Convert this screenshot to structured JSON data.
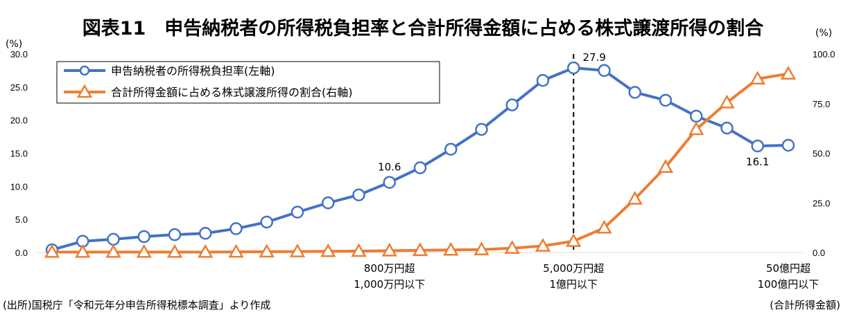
{
  "chart_data": {
    "type": "line",
    "title": "図表11　申告納税者の所得税負担率と合計所得金額に占める株式譲渡所得の割合",
    "left_axis": {
      "unit_label": "(%)",
      "ylim": [
        0,
        30
      ],
      "ticks": [
        "0.0",
        "5.0",
        "10.0",
        "15.0",
        "20.0",
        "25.0",
        "30.0"
      ]
    },
    "right_axis": {
      "unit_label": "(%)",
      "ylim": [
        0,
        100
      ],
      "ticks": [
        "0.0",
        "25.0",
        "50.0",
        "75.0",
        "100.0"
      ]
    },
    "xlabel": "(合計所得金額)",
    "x_count": 25,
    "category_labels": [
      {
        "index": 11,
        "line1": "800万円超",
        "line2": "1,000万円以下"
      },
      {
        "index": 17,
        "line1": "5,000万円超",
        "line2": "1億円以下"
      },
      {
        "index": 24,
        "line1": "50億円超",
        "line2": "100億円以下"
      }
    ],
    "reference_line_index": 17,
    "series": [
      {
        "name": "申告納税者の所得税負担率(左軸)",
        "axis": "left",
        "color": "#4472C4",
        "marker": "circle",
        "values": [
          0.4,
          1.7,
          2.0,
          2.4,
          2.7,
          2.9,
          3.6,
          4.6,
          6.1,
          7.5,
          8.7,
          10.6,
          12.8,
          15.6,
          18.6,
          22.3,
          26.0,
          27.9,
          27.5,
          24.2,
          23.0,
          20.6,
          18.8,
          16.1,
          16.2
        ]
      },
      {
        "name": "合計所得金額に占める株式譲渡所得の割合(右軸)",
        "axis": "right",
        "color": "#ED7D31",
        "marker": "triangle",
        "values": [
          0.2,
          0.2,
          0.2,
          0.2,
          0.2,
          0.2,
          0.3,
          0.4,
          0.5,
          0.6,
          0.7,
          0.9,
          1.1,
          1.3,
          1.5,
          2.2,
          3.3,
          5.7,
          12.4,
          27.0,
          43.0,
          62.0,
          75.5,
          87.5,
          90.0
        ]
      }
    ],
    "annotations": [
      {
        "series": 0,
        "index": 11,
        "text": "10.6"
      },
      {
        "series": 0,
        "index": 17,
        "text": "27.9"
      },
      {
        "series": 0,
        "index": 23,
        "text": "16.1"
      }
    ]
  },
  "source_note": "(出所)国税庁「令和元年分申告所得税標本調査」より作成"
}
